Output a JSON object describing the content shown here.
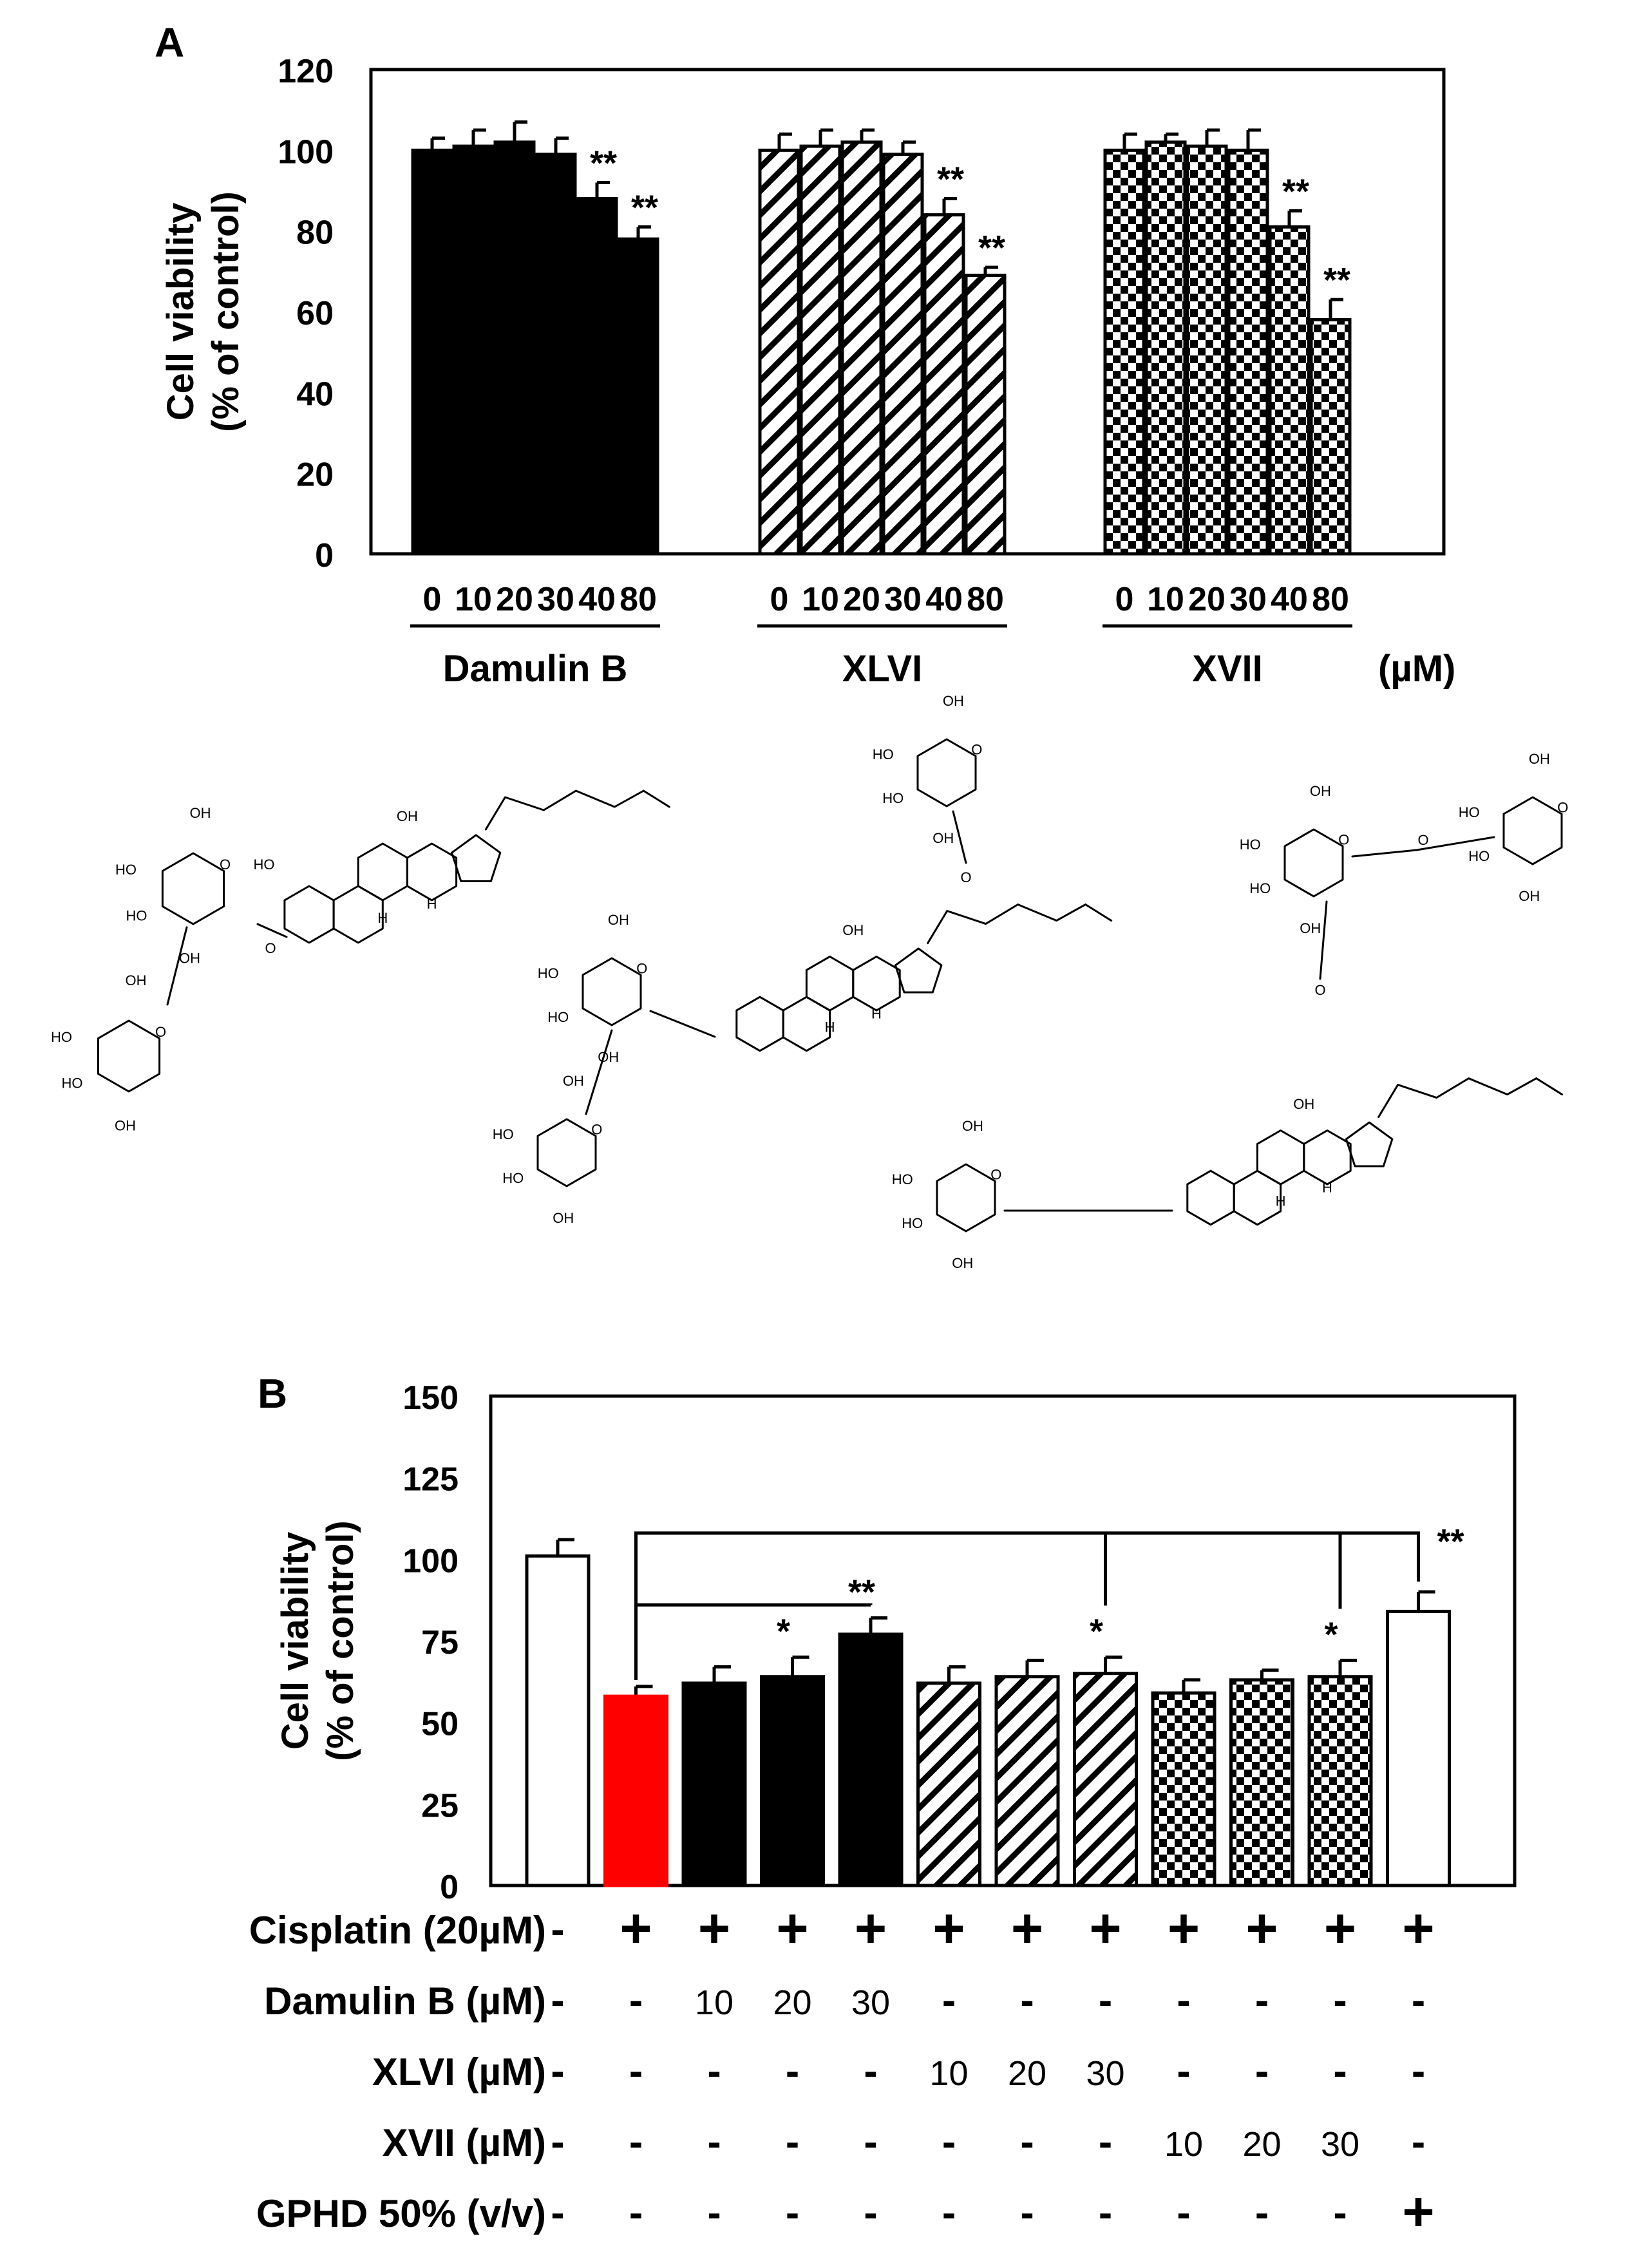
{
  "chart_data": [
    {
      "panel_label": "A",
      "type": "bar",
      "ylabel_line1": "Cell viability",
      "ylabel_line2": "(% of control)",
      "ylim": [
        0,
        120
      ],
      "yticks": [
        "0",
        "20",
        "40",
        "60",
        "80",
        "100",
        "120"
      ],
      "groups": [
        {
          "name": "Damulin B",
          "pattern": "solid",
          "categories": [
            "0",
            "10",
            "20",
            "30",
            "40",
            "80"
          ],
          "values": [
            100,
            101,
            102,
            99,
            88,
            78
          ],
          "errors": [
            3,
            4,
            5,
            4,
            4,
            3
          ],
          "significance": [
            "",
            "",
            "",
            "",
            "**",
            "**"
          ]
        },
        {
          "name": "XLVI",
          "pattern": "hatch",
          "categories": [
            "0",
            "10",
            "20",
            "30",
            "40",
            "80"
          ],
          "values": [
            100,
            101,
            102,
            99,
            84,
            69
          ],
          "errors": [
            4,
            4,
            3,
            3,
            4,
            2
          ],
          "significance": [
            "",
            "",
            "",
            "",
            "**",
            "**"
          ]
        },
        {
          "name": "XVII",
          "pattern": "checker",
          "categories": [
            "0",
            "10",
            "20",
            "30",
            "40",
            "80"
          ],
          "values": [
            100,
            102,
            101,
            100,
            81,
            58
          ],
          "errors": [
            4,
            2,
            4,
            5,
            4,
            5
          ],
          "significance": [
            "",
            "",
            "",
            "",
            "**",
            "**"
          ]
        }
      ],
      "unit_label": "(µM)"
    },
    {
      "panel_label": "B",
      "type": "bar",
      "ylabel_line1": "Cell viability",
      "ylabel_line2": "(% of control)",
      "ylim": [
        0,
        150
      ],
      "yticks": [
        "0",
        "25",
        "50",
        "75",
        "100",
        "125",
        "150"
      ],
      "bars": [
        {
          "value": 101,
          "error": 5,
          "style": "white",
          "significance": ""
        },
        {
          "value": 58,
          "error": 3,
          "style": "red",
          "significance": ""
        },
        {
          "value": 62,
          "error": 5,
          "style": "solid",
          "significance": ""
        },
        {
          "value": 64,
          "error": 6,
          "style": "solid",
          "significance": "*"
        },
        {
          "value": 77,
          "error": 5,
          "style": "solid",
          "significance": "**"
        },
        {
          "value": 62,
          "error": 5,
          "style": "hatch",
          "significance": ""
        },
        {
          "value": 64,
          "error": 5,
          "style": "hatch",
          "significance": ""
        },
        {
          "value": 65,
          "error": 5,
          "style": "hatch",
          "significance": "*"
        },
        {
          "value": 59,
          "error": 4,
          "style": "checker",
          "significance": ""
        },
        {
          "value": 63,
          "error": 3,
          "style": "checker",
          "significance": ""
        },
        {
          "value": 64,
          "error": 5,
          "style": "checker",
          "significance": "*"
        },
        {
          "value": 84,
          "error": 6,
          "style": "white",
          "significance": "**"
        }
      ],
      "conditions": [
        {
          "label": "Cisplatin (20µM)",
          "cells": [
            "-",
            "+",
            "+",
            "+",
            "+",
            "+",
            "+",
            "+",
            "+",
            "+",
            "+",
            "+"
          ]
        },
        {
          "label": "Damulin B (µM)",
          "cells": [
            "-",
            "-",
            "10",
            "20",
            "30",
            "-",
            "-",
            "-",
            "-",
            "-",
            "-",
            "-"
          ]
        },
        {
          "label": "XLVI (µM)",
          "cells": [
            "-",
            "-",
            "-",
            "-",
            "-",
            "10",
            "20",
            "30",
            "-",
            "-",
            "-",
            "-"
          ]
        },
        {
          "label": "XVII (µM)",
          "cells": [
            "-",
            "-",
            "-",
            "-",
            "-",
            "-",
            "-",
            "-",
            "10",
            "20",
            "30",
            "-"
          ]
        },
        {
          "label": "GPHD 50% (v/v)",
          "cells": [
            "-",
            "-",
            "-",
            "-",
            "-",
            "-",
            "-",
            "-",
            "-",
            "-",
            "-",
            "+"
          ]
        }
      ]
    }
  ],
  "structures": {
    "hydroxyl_label": "OH",
    "ho_label": "HO",
    "h_label": "H",
    "o_label": "O"
  },
  "colors": {
    "bar_fill": "#000000",
    "control_fill": "#ffffff",
    "cisplatin_fill": "#ff0000",
    "axis": "#000000"
  }
}
